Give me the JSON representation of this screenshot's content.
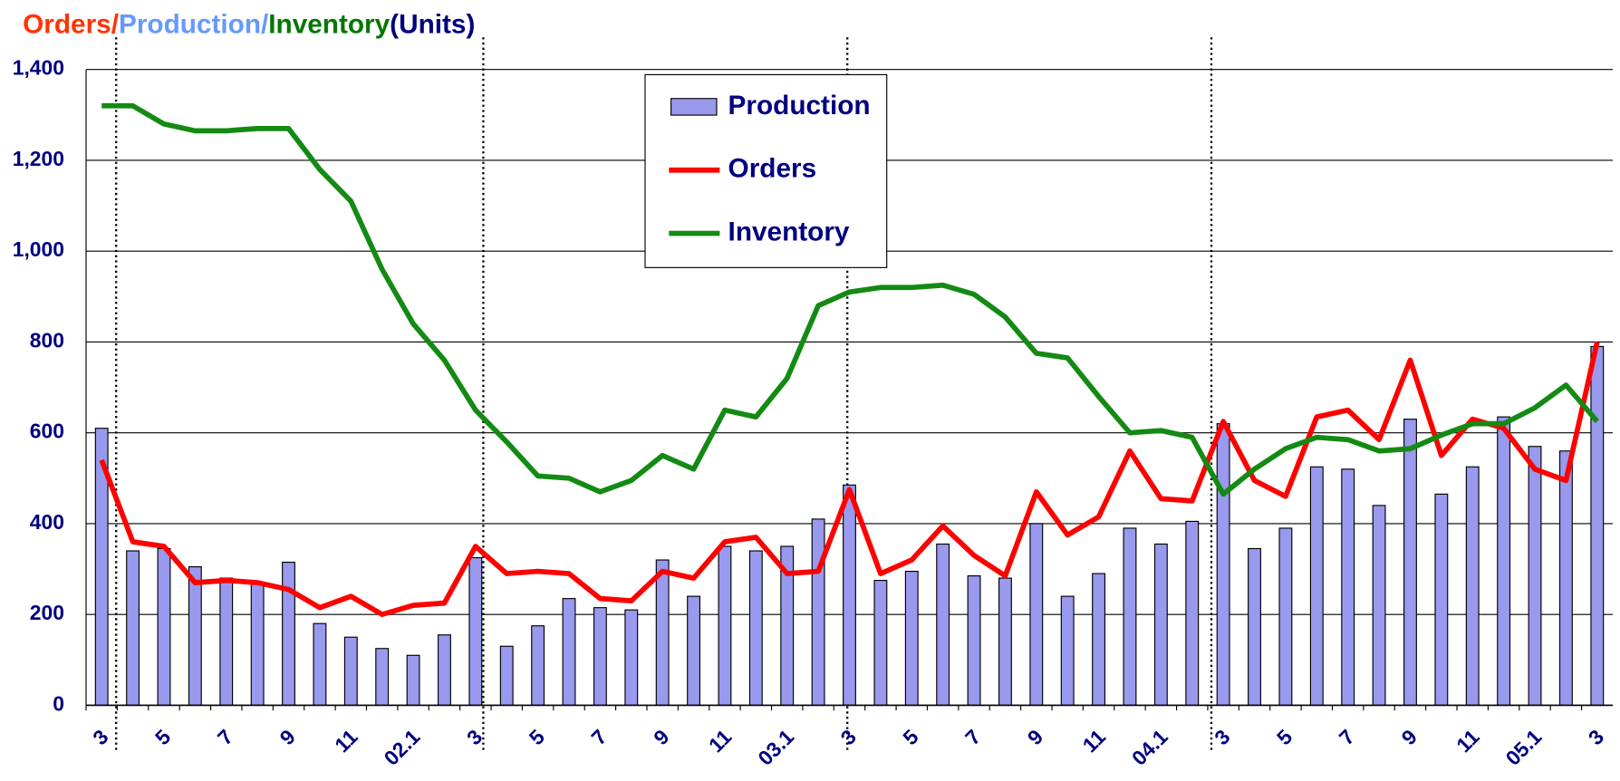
{
  "chart_data": {
    "type": "bar_line",
    "title": [
      "Orders/",
      "Production/",
      "Inventory",
      "(Units)"
    ],
    "title_colors": [
      "#ff3300",
      "#6699ff",
      "#007700",
      "#000080"
    ],
    "categories": [
      "3",
      null,
      "5",
      null,
      "7",
      null,
      "9",
      null,
      "11",
      null,
      "02.1",
      null,
      "3",
      null,
      "5",
      null,
      "7",
      null,
      "9",
      null,
      "11",
      null,
      "03.1",
      null,
      "3",
      null,
      "5",
      null,
      "7",
      null,
      "9",
      null,
      "11",
      null,
      "04.1",
      null,
      "3",
      null,
      "5",
      null,
      "7",
      null,
      "9",
      null,
      "11",
      null,
      "05.1",
      null,
      "3"
    ],
    "series": [
      {
        "name": "Production",
        "kind": "bar",
        "color": "#9999ee",
        "values": [
          610,
          340,
          345,
          305,
          280,
          270,
          315,
          180,
          150,
          125,
          110,
          155,
          325,
          130,
          175,
          235,
          215,
          210,
          320,
          240,
          350,
          340,
          350,
          410,
          485,
          275,
          295,
          355,
          285,
          280,
          400,
          240,
          290,
          390,
          355,
          405,
          620,
          345,
          390,
          525,
          520,
          440,
          630,
          465,
          525,
          635,
          570,
          560,
          790
        ]
      },
      {
        "name": "Orders",
        "kind": "line",
        "color": "#ff0000",
        "values": [
          540,
          360,
          350,
          270,
          275,
          270,
          255,
          215,
          240,
          200,
          220,
          225,
          350,
          290,
          295,
          290,
          235,
          230,
          295,
          280,
          360,
          370,
          290,
          295,
          475,
          290,
          320,
          395,
          330,
          285,
          470,
          375,
          415,
          560,
          455,
          450,
          625,
          495,
          460,
          635,
          650,
          585,
          760,
          550,
          630,
          610,
          520,
          495,
          800
        ]
      },
      {
        "name": "Inventory",
        "kind": "line",
        "color": "#138a13",
        "values": [
          1320,
          1320,
          1280,
          1265,
          1265,
          1270,
          1270,
          1180,
          1110,
          960,
          840,
          760,
          650,
          580,
          505,
          500,
          470,
          495,
          550,
          520,
          650,
          635,
          720,
          880,
          910,
          920,
          920,
          925,
          905,
          855,
          775,
          765,
          680,
          600,
          605,
          590,
          465,
          520,
          565,
          590,
          585,
          560,
          565,
          595,
          620,
          620,
          655,
          705,
          625
        ]
      }
    ],
    "ylim": [
      0,
      1400
    ],
    "yticks": [
      0,
      {
        "value": 200,
        "label": "200"
      },
      400,
      600,
      800,
      {
        "value": 1000,
        "label": "1,000"
      },
      {
        "value": 1200,
        "label": "1,200"
      },
      {
        "value": 1400,
        "label": "1,400"
      }
    ],
    "grid": true
  }
}
